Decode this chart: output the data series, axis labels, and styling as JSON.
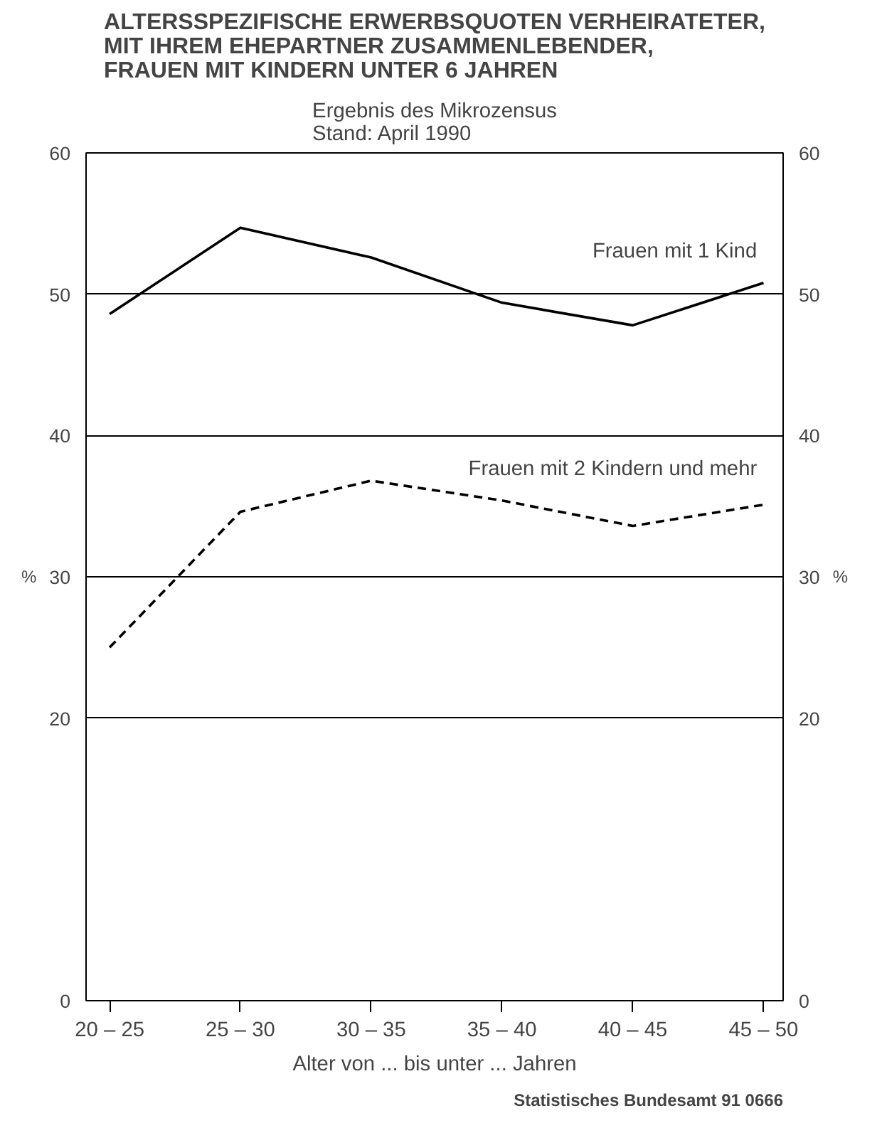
{
  "chart_data": {
    "type": "line",
    "title": "ALTERSSPEZIFISCHE ERWERBSQUOTEN VERHEIRATETER,\nMIT IHREM EHEPARTNER ZUSAMMENLEBENDER,\nFRAUEN MIT KINDERN UNTER 6 JAHREN",
    "subtitle": "Ergebnis des Mikrozensus\nStand: April 1990",
    "categories": [
      "20 – 25",
      "25 – 30",
      "30 – 35",
      "35 – 40",
      "40 – 45",
      "45 – 50"
    ],
    "series": [
      {
        "name": "Frauen mit 1 Kind",
        "color": "#000000",
        "line_style": "solid",
        "values": [
          48.6,
          54.7,
          52.6,
          49.4,
          47.8,
          50.8
        ]
      },
      {
        "name": "Frauen mit 2 Kindern und mehr",
        "color": "#000000",
        "line_style": "dashed",
        "values": [
          25.0,
          34.6,
          36.8,
          35.4,
          33.6,
          35.1
        ]
      }
    ],
    "xlabel": "Alter von ... bis unter ... Jahren",
    "ylabel": "%",
    "y2label": "%",
    "ylim": [
      0,
      60
    ],
    "yticks": [
      0,
      20,
      30,
      40,
      50,
      60
    ],
    "y2lim": [
      0,
      60
    ],
    "y2ticks": [
      0,
      20,
      30,
      40,
      50,
      60
    ],
    "grid": "y",
    "annotations": [
      "Statistisches Bundesamt 91 0666"
    ]
  }
}
